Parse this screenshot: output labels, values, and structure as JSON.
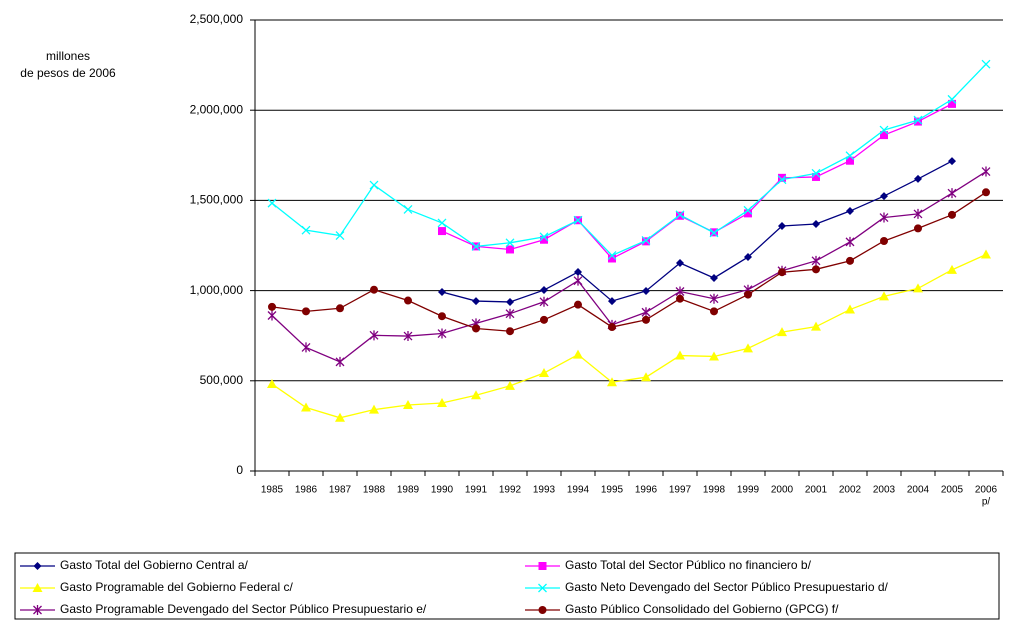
{
  "chart_data": {
    "type": "line",
    "ylabel": [
      "millones",
      "de pesos de 2006"
    ],
    "categories": [
      "1985",
      "1986",
      "1987",
      "1988",
      "1989",
      "1990",
      "1991",
      "1992",
      "1993",
      "1994",
      "1995",
      "1996",
      "1997",
      "1998",
      "1999",
      "2000",
      "2001",
      "2002",
      "2003",
      "2004",
      "2005",
      "2006"
    ],
    "annotation": "p/",
    "ylim": [
      0,
      2500000
    ],
    "yticks": [
      0,
      {
        "value": 500000,
        "label": "500,000"
      },
      {
        "value": 1000000,
        "label": "1,000,000"
      },
      {
        "value": 1500000,
        "label": "1,500,000"
      },
      {
        "value": 2000000,
        "label": "2,000,000"
      },
      {
        "value": 2500000,
        "label": "2,500,000"
      }
    ],
    "grid": true,
    "legend": "bottom",
    "series": [
      {
        "name": "Gasto Total del Gobierno Central a/",
        "color": "#000080",
        "marker": "diamond",
        "values": [
          null,
          null,
          null,
          null,
          null,
          992000,
          942000,
          937000,
          1003000,
          1103000,
          942000,
          998000,
          1153000,
          1070000,
          1186000,
          1358000,
          1369000,
          1441000,
          1524000,
          1619000,
          1718000,
          null
        ]
      },
      {
        "name": "Gasto Total del Sector Público no financiero b/",
        "color": "#ff00ff",
        "marker": "square",
        "values": [
          null,
          null,
          null,
          null,
          null,
          1330000,
          1245000,
          1228000,
          1282000,
          1390000,
          1178000,
          1273000,
          1415000,
          1323000,
          1428000,
          1625000,
          1630000,
          1720000,
          1862000,
          1937000,
          2035000,
          null
        ]
      },
      {
        "name": "Gasto Programable del Gobierno Federal c/",
        "color": "#ffff00",
        "marker": "triangle",
        "values": [
          482000,
          352000,
          295000,
          340000,
          366000,
          377000,
          420000,
          472000,
          543000,
          645000,
          492000,
          520000,
          640000,
          635000,
          680000,
          770000,
          800000,
          895000,
          968000,
          1012000,
          1115000,
          1200000
        ]
      },
      {
        "name": "Gasto Neto Devengado del Sector Público Presupuestario d/",
        "color": "#00ffff",
        "marker": "x",
        "values": [
          1485000,
          1335000,
          1305000,
          1585000,
          1450000,
          1375000,
          1245000,
          1265000,
          1298000,
          1390000,
          1195000,
          1278000,
          1420000,
          1320000,
          1445000,
          1615000,
          1650000,
          1748000,
          1890000,
          1945000,
          2060000,
          2255000
        ]
      },
      {
        "name": "Gasto Programable Devengado del Sector Público Presupuestario e/",
        "color": "#800080",
        "marker": "star",
        "values": [
          862000,
          685000,
          605000,
          752000,
          748000,
          762000,
          818000,
          872000,
          938000,
          1055000,
          810000,
          880000,
          995000,
          955000,
          1005000,
          1110000,
          1165000,
          1270000,
          1405000,
          1425000,
          1540000,
          1660000
        ]
      },
      {
        "name": "Gasto Público Consolidado del Gobierno (GPCG) f/",
        "color": "#800000",
        "marker": "circle",
        "values": [
          910000,
          885000,
          902000,
          1005000,
          945000,
          858000,
          790000,
          775000,
          838000,
          922000,
          798000,
          838000,
          955000,
          885000,
          978000,
          1102000,
          1118000,
          1165000,
          1275000,
          1345000,
          1420000,
          1545000
        ]
      }
    ]
  }
}
